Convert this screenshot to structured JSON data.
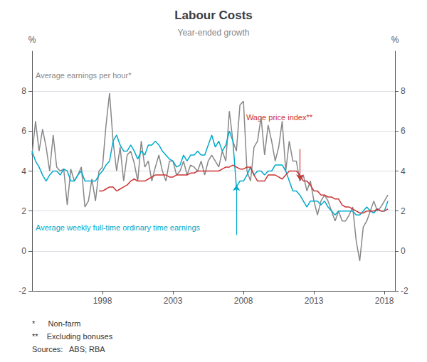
{
  "chart_data": {
    "type": "line",
    "title": "Labour Costs",
    "subtitle": "Year-ended growth",
    "y_label": "%",
    "y2_label": "%",
    "xlim": [
      1993.0,
      2018.75
    ],
    "xticks": [
      1998,
      2003,
      2008,
      2013,
      2018
    ],
    "ylim": [
      -2,
      10
    ],
    "yticks": [
      -2,
      0,
      2,
      4,
      6,
      8
    ],
    "y2lim": [
      -2,
      10
    ],
    "y2ticks": [
      -2,
      0,
      2,
      4,
      6,
      8
    ],
    "grid": true,
    "footnotes": [
      "*      Non-farm",
      "**    Excluding bonuses",
      "Sources:   ABS; RBA"
    ],
    "series": [
      {
        "name": "Average earnings per hour*",
        "color": "#888888",
        "x": [
          1993.0,
          1993.25,
          1993.5,
          1993.75,
          1994.0,
          1994.25,
          1994.5,
          1994.75,
          1995.0,
          1995.25,
          1995.5,
          1995.75,
          1996.0,
          1996.25,
          1996.5,
          1996.75,
          1997.0,
          1997.25,
          1997.5,
          1997.75,
          1998.0,
          1998.25,
          1998.5,
          1998.75,
          1999.0,
          1999.25,
          1999.5,
          1999.75,
          2000.0,
          2000.25,
          2000.5,
          2000.75,
          2001.0,
          2001.25,
          2001.5,
          2001.75,
          2002.0,
          2002.25,
          2002.5,
          2002.75,
          2003.0,
          2003.25,
          2003.5,
          2003.75,
          2004.0,
          2004.25,
          2004.5,
          2004.75,
          2005.0,
          2005.25,
          2005.5,
          2005.75,
          2006.0,
          2006.25,
          2006.5,
          2006.75,
          2007.0,
          2007.25,
          2007.5,
          2007.75,
          2008.0,
          2008.25,
          2008.5,
          2008.75,
          2009.0,
          2009.25,
          2009.5,
          2009.75,
          2010.0,
          2010.25,
          2010.5,
          2010.75,
          2011.0,
          2011.25,
          2011.5,
          2011.75,
          2012.0,
          2012.25,
          2012.5,
          2012.75,
          2013.0,
          2013.25,
          2013.5,
          2013.75,
          2014.0,
          2014.25,
          2014.5,
          2014.75,
          2015.0,
          2015.25,
          2015.5,
          2015.75,
          2016.0,
          2016.25,
          2016.5,
          2016.75,
          2017.0,
          2017.25,
          2017.5,
          2017.75,
          2018.0,
          2018.25
        ],
        "values": [
          4.8,
          6.5,
          5.0,
          6.1,
          5.2,
          4.0,
          5.8,
          4.2,
          4.0,
          4.1,
          2.3,
          4.1,
          3.5,
          3.8,
          4.2,
          2.2,
          2.5,
          3.6,
          2.5,
          4.0,
          4.2,
          6.3,
          7.9,
          5.5,
          4.0,
          5.2,
          3.5,
          4.8,
          5.0,
          4.4,
          3.5,
          5.5,
          4.2,
          4.5,
          3.5,
          4.2,
          4.8,
          4.0,
          3.5,
          4.5,
          4.5,
          3.8,
          4.0,
          4.5,
          3.8,
          4.3,
          4.2,
          4.0,
          4.5,
          3.8,
          4.5,
          4.8,
          4.5,
          4.2,
          5.0,
          4.5,
          7.0,
          5.5,
          5.0,
          7.3,
          7.5,
          4.0,
          3.5,
          5.2,
          5.5,
          6.7,
          4.8,
          6.3,
          5.5,
          4.5,
          5.2,
          6.5,
          4.0,
          5.5,
          4.5,
          4.5,
          3.5,
          3.8,
          3.0,
          3.5,
          2.5,
          1.8,
          2.5,
          2.8,
          2.5,
          2.0,
          1.5,
          2.0,
          1.5,
          1.5,
          1.8,
          2.2,
          0.5,
          -0.5,
          1.2,
          1.5,
          2.0,
          2.5,
          2.0,
          2.2,
          2.5,
          2.8
        ]
      },
      {
        "name": "Average weekly full-time ordinary time earnings",
        "color": "#00aacc",
        "x": [
          1993.0,
          1993.25,
          1993.5,
          1993.75,
          1994.0,
          1994.25,
          1994.5,
          1994.75,
          1995.0,
          1995.25,
          1995.5,
          1995.75,
          1996.0,
          1996.25,
          1996.5,
          1996.75,
          1997.0,
          1997.25,
          1997.5,
          1997.75,
          1998.0,
          1998.25,
          1998.5,
          1998.75,
          1999.0,
          1999.25,
          1999.5,
          1999.75,
          2000.0,
          2000.25,
          2000.5,
          2000.75,
          2001.0,
          2001.25,
          2001.5,
          2001.75,
          2002.0,
          2002.25,
          2002.5,
          2002.75,
          2003.0,
          2003.25,
          2003.5,
          2003.75,
          2004.0,
          2004.25,
          2004.5,
          2004.75,
          2005.0,
          2005.25,
          2005.5,
          2005.75,
          2006.0,
          2006.25,
          2006.5,
          2006.75,
          2007.0,
          2007.25,
          2007.5,
          2007.75,
          2008.0,
          2008.25,
          2008.5,
          2008.75,
          2009.0,
          2009.25,
          2009.5,
          2009.75,
          2010.0,
          2010.25,
          2010.5,
          2010.75,
          2011.0,
          2011.25,
          2011.5,
          2011.75,
          2012.0,
          2012.25,
          2012.5,
          2012.75,
          2013.0,
          2013.25,
          2013.5,
          2013.75,
          2014.0,
          2014.25,
          2014.5,
          2014.75,
          2015.0,
          2015.25,
          2015.5,
          2015.75,
          2016.0,
          2016.25,
          2016.5,
          2016.75,
          2017.0,
          2017.25,
          2017.5,
          2017.75,
          2018.0,
          2018.25
        ],
        "values": [
          5.0,
          4.5,
          4.2,
          3.8,
          3.5,
          3.8,
          4.0,
          4.0,
          3.8,
          4.1,
          4.0,
          3.5,
          3.5,
          3.8,
          4.0,
          3.5,
          3.5,
          3.5,
          3.5,
          3.8,
          4.0,
          4.3,
          4.5,
          5.5,
          5.8,
          5.3,
          5.0,
          5.0,
          5.3,
          5.0,
          4.6,
          5.0,
          4.8,
          5.3,
          5.3,
          5.5,
          5.3,
          5.0,
          4.8,
          4.6,
          4.5,
          4.2,
          4.3,
          4.8,
          4.5,
          4.8,
          4.8,
          5.0,
          4.8,
          4.8,
          5.3,
          5.8,
          5.2,
          5.5,
          5.0,
          5.3,
          6.0,
          5.5,
          3.2,
          3.5,
          3.5,
          3.8,
          4.2,
          3.8,
          4.0,
          4.0,
          3.8,
          4.0,
          4.0,
          4.3,
          4.3,
          4.3,
          4.0,
          3.5,
          3.0,
          3.0,
          2.8,
          2.5,
          2.2,
          2.5,
          2.5,
          2.5,
          2.3,
          2.5,
          2.2,
          2.0,
          1.8,
          2.0,
          2.0,
          2.0,
          2.0,
          2.0,
          1.8,
          1.8,
          2.0,
          2.2,
          2.0,
          1.9,
          2.1,
          2.0,
          2.0,
          2.5
        ],
        "arrow": {
          "x": 2007.5,
          "y_tail": 0.8,
          "y_tip": 3.3
        }
      },
      {
        "name": "Wage price index**",
        "color": "#cc3333",
        "x": [
          1997.75,
          1998.0,
          1998.25,
          1998.5,
          1998.75,
          1999.0,
          1999.25,
          1999.5,
          1999.75,
          2000.0,
          2000.25,
          2000.5,
          2000.75,
          2001.0,
          2001.25,
          2001.5,
          2001.75,
          2002.0,
          2002.25,
          2002.5,
          2002.75,
          2003.0,
          2003.25,
          2003.5,
          2003.75,
          2004.0,
          2004.25,
          2004.5,
          2004.75,
          2005.0,
          2005.25,
          2005.5,
          2005.75,
          2006.0,
          2006.25,
          2006.5,
          2006.75,
          2007.0,
          2007.25,
          2007.5,
          2007.75,
          2008.0,
          2008.25,
          2008.5,
          2008.75,
          2009.0,
          2009.25,
          2009.5,
          2009.75,
          2010.0,
          2010.25,
          2010.5,
          2010.75,
          2011.0,
          2011.25,
          2011.5,
          2011.75,
          2012.0,
          2012.25,
          2012.5,
          2012.75,
          2013.0,
          2013.25,
          2013.5,
          2013.75,
          2014.0,
          2014.25,
          2014.5,
          2014.75,
          2015.0,
          2015.25,
          2015.5,
          2015.75,
          2016.0,
          2016.25,
          2016.5,
          2016.75,
          2017.0,
          2017.25,
          2017.5,
          2017.75,
          2018.0,
          2018.25
        ],
        "values": [
          3.0,
          3.0,
          3.1,
          3.2,
          3.2,
          3.0,
          3.1,
          3.2,
          3.3,
          3.5,
          3.6,
          3.5,
          3.5,
          3.5,
          3.6,
          3.7,
          3.8,
          3.8,
          3.8,
          3.8,
          3.7,
          3.7,
          3.8,
          3.8,
          3.8,
          3.8,
          3.9,
          3.9,
          4.0,
          4.0,
          4.0,
          4.0,
          4.0,
          4.0,
          4.0,
          4.1,
          4.2,
          4.2,
          4.3,
          4.2,
          4.1,
          4.1,
          4.2,
          4.2,
          3.8,
          3.5,
          3.5,
          3.5,
          3.8,
          3.8,
          3.8,
          3.7,
          3.6,
          3.8,
          4.0,
          4.0,
          4.0,
          3.8,
          3.5,
          3.5,
          3.3,
          3.0,
          3.0,
          2.8,
          2.8,
          2.7,
          2.7,
          2.6,
          2.6,
          2.3,
          2.2,
          2.2,
          2.1,
          2.0,
          1.9,
          1.9,
          2.0,
          2.0,
          2.0,
          2.1,
          2.0,
          2.0,
          2.1
        ],
        "arrow": {
          "x": 2012.0,
          "y_tail": 5.1,
          "y_tip": 3.55
        }
      }
    ]
  }
}
